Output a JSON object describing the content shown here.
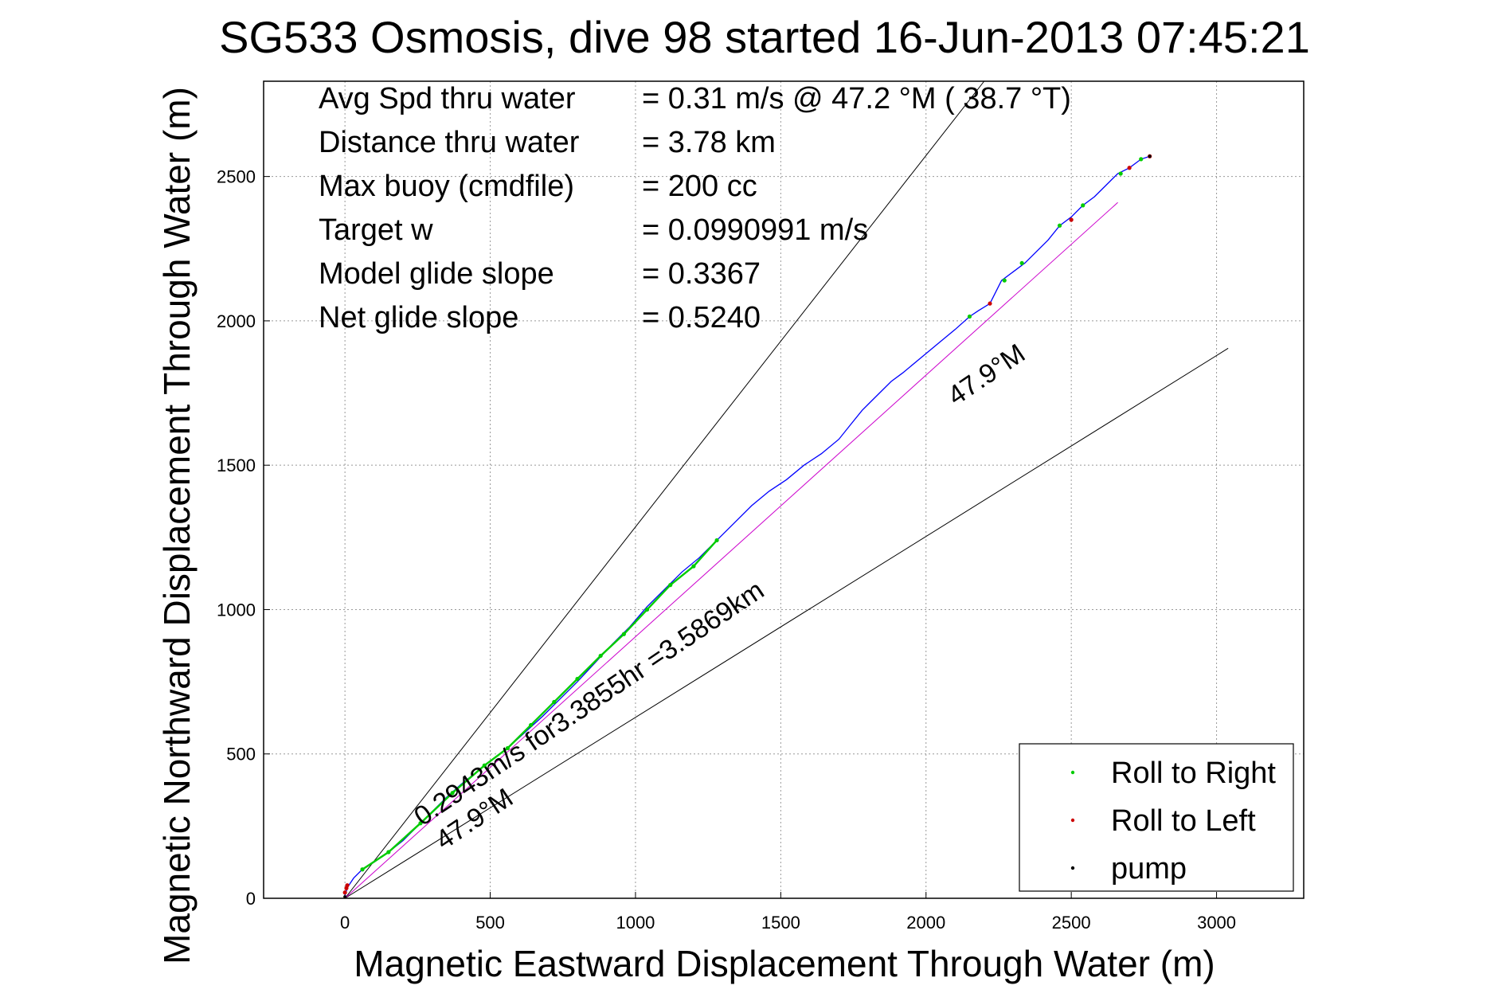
{
  "chart_data": {
    "type": "line",
    "title": "SG533 Osmosis, dive 98 started 16-Jun-2013 07:45:21",
    "xlabel": "Magnetic Eastward Displacement Through Water (m)",
    "ylabel": "Magnetic Northward Displacement Through Water (m)",
    "xlim": [
      -280,
      3300
    ],
    "ylim": [
      0,
      2830
    ],
    "xticks": [
      0,
      500,
      1000,
      1500,
      2000,
      2500,
      3000
    ],
    "yticks": [
      0,
      500,
      1000,
      1500,
      2000,
      2500
    ],
    "grid": true,
    "stats": [
      {
        "label": "Avg Spd thru water",
        "value": "=  0.31 m/s @  47.2 °M ( 38.7 °T)"
      },
      {
        "label": "Distance thru water",
        "value": "=  3.78 km"
      },
      {
        "label": "Max buoy (cmdfile)",
        "value": "= 200 cc"
      },
      {
        "label": "Target w",
        "value": "= 0.0990991 m/s"
      },
      {
        "label": "Model glide slope",
        "value": "= 0.3367"
      },
      {
        "label": "Net glide slope",
        "value": "= 0.5240"
      }
    ],
    "annotations": {
      "track_label": "0.2943m/s for3.3855hr =3.5869km",
      "heading_upper": "47.9°M",
      "heading_lower": "47.9°M"
    },
    "reference_lines": [
      {
        "x": [
          0,
          2200
        ],
        "y": [
          0,
          2830
        ],
        "color": "#000000"
      },
      {
        "x": [
          0,
          3040
        ],
        "y": [
          0,
          1905
        ],
        "color": "#000000"
      },
      {
        "x": [
          0,
          2660
        ],
        "y": [
          0,
          2410
        ],
        "color": "#cc00cc"
      }
    ],
    "series": [
      {
        "name": "track",
        "color": "#0000ff",
        "x": [
          0,
          10,
          30,
          60,
          100,
          150,
          200,
          250,
          300,
          350,
          400,
          450,
          500,
          560,
          620,
          680,
          740,
          800,
          860,
          920,
          980,
          1040,
          1100,
          1160,
          1220,
          1280,
          1340,
          1400,
          1460,
          1520,
          1580,
          1640,
          1700,
          1740,
          1780,
          1800,
          1840,
          1880,
          1920,
          1980,
          2040,
          2100,
          2150,
          2180,
          2220,
          2260,
          2300,
          2340,
          2380,
          2420,
          2460,
          2500,
          2540,
          2580,
          2620,
          2660,
          2700,
          2740,
          2770
        ],
        "y": [
          10,
          40,
          70,
          100,
          125,
          160,
          200,
          250,
          300,
          350,
          395,
          435,
          475,
          520,
          575,
          630,
          690,
          750,
          815,
          880,
          940,
          1010,
          1070,
          1130,
          1180,
          1240,
          1300,
          1360,
          1410,
          1450,
          1500,
          1540,
          1590,
          1640,
          1690,
          1710,
          1750,
          1790,
          1820,
          1870,
          1920,
          1970,
          2015,
          2035,
          2060,
          2140,
          2170,
          2200,
          2240,
          2280,
          2330,
          2360,
          2400,
          2430,
          2470,
          2510,
          2530,
          2560,
          2570
        ]
      }
    ],
    "markers": {
      "roll_right": {
        "name": "Roll to Right",
        "color": "#00cc00",
        "x": [
          60,
          150,
          260,
          370,
          480,
          560,
          640,
          720,
          800,
          880,
          960,
          1040,
          1120,
          1200,
          1280,
          2150,
          2270,
          2330,
          2460,
          2540,
          2670,
          2740
        ],
        "y": [
          100,
          160,
          260,
          365,
          460,
          520,
          600,
          680,
          760,
          840,
          915,
          1000,
          1085,
          1150,
          1240,
          2015,
          2140,
          2200,
          2330,
          2400,
          2510,
          2560
        ]
      },
      "roll_left": {
        "name": "Roll to Left",
        "color": "#cc0000",
        "x": [
          0,
          5,
          8,
          2220,
          2500,
          2700,
          2770
        ],
        "y": [
          20,
          35,
          45,
          2060,
          2350,
          2530,
          2570
        ]
      },
      "pump": {
        "name": "pump",
        "color": "#000000",
        "x": [
          0,
          2770
        ],
        "y": [
          5,
          2570
        ]
      }
    },
    "legend": {
      "position": "bottom-right",
      "entries": [
        "Roll to Right",
        "Roll to Left",
        "pump"
      ]
    }
  }
}
